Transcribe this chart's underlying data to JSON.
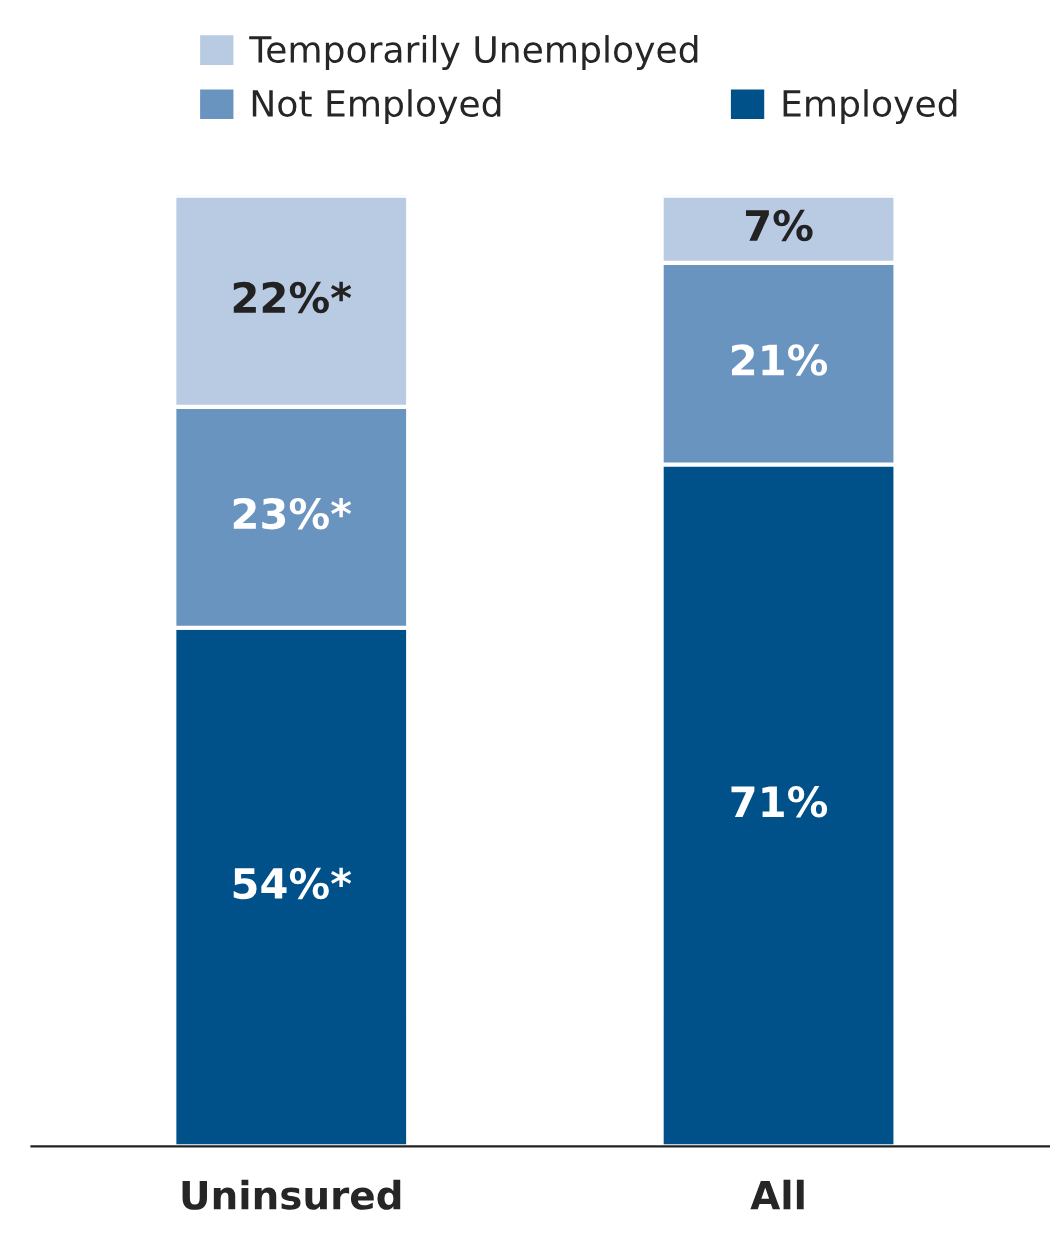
{
  "chart_data": {
    "type": "bar",
    "stacked": true,
    "categories": [
      "Uninsured",
      "All"
    ],
    "series": [
      {
        "name": "Employed",
        "color": "#00508a",
        "values": [
          54,
          71
        ],
        "value_labels": [
          "54%*",
          "71%"
        ]
      },
      {
        "name": "Not Employed",
        "color": "#6a94c0",
        "values": [
          23,
          21
        ],
        "value_labels": [
          "23%*",
          "21%"
        ]
      },
      {
        "name": "Temporarily Unemployed",
        "color": "#b9cbe3",
        "values": [
          22,
          7
        ],
        "value_labels": [
          "22%*",
          "7%"
        ]
      }
    ],
    "legend": "top left"
  }
}
